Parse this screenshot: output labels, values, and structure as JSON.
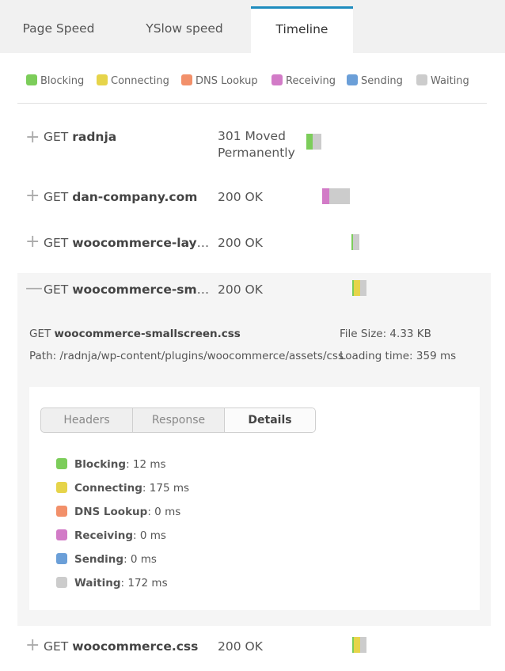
{
  "tabs": [
    {
      "label": "Page Speed"
    },
    {
      "label": "YSlow speed"
    },
    {
      "label": "Timeline"
    }
  ],
  "legend": [
    {
      "label": "Blocking",
      "color": "#7ccd5a"
    },
    {
      "label": "Connecting",
      "color": "#e6d44a"
    },
    {
      "label": "DNS Lookup",
      "color": "#f2906a"
    },
    {
      "label": "Receiving",
      "color": "#d27bc7"
    },
    {
      "label": "Sending",
      "color": "#6b9fd8"
    },
    {
      "label": "Waiting",
      "color": "#cccccc"
    }
  ],
  "requests": [
    {
      "sign": "+",
      "method": "GET",
      "name": "radnja",
      "status_line1": "301 Moved",
      "status_line2": "Permanently"
    },
    {
      "sign": "+",
      "method": "GET",
      "name": "dan-company.com",
      "status": "200 OK"
    },
    {
      "sign": "+",
      "method": "GET",
      "name": "woocommerce-layout.css",
      "status": "200 OK"
    },
    {
      "sign": "—",
      "method": "GET",
      "name": "woocommerce-smallscreen.css",
      "status": "200 OK"
    },
    {
      "sign": "+",
      "method": "GET",
      "name": "woocommerce.css",
      "status": "200 OK"
    }
  ],
  "expanded": {
    "method": "GET",
    "name": "woocommerce-smallscreen.css",
    "path": "Path: /radnja/wp-content/plugins/woocommerce/assets/css",
    "file_size": "File Size: 4.33 KB",
    "loading_time": "Loading time: 359 ms",
    "subtabs": [
      {
        "label": "Headers"
      },
      {
        "label": "Response"
      },
      {
        "label": "Details"
      }
    ],
    "details": [
      {
        "label": "Blocking",
        "value": ": 12 ms",
        "color": "#7ccd5a"
      },
      {
        "label": "Connecting",
        "value": ": 175 ms",
        "color": "#e6d44a"
      },
      {
        "label": "DNS Lookup",
        "value": ": 0 ms",
        "color": "#f2906a"
      },
      {
        "label": "Receiving",
        "value": ": 0 ms",
        "color": "#d27bc7"
      },
      {
        "label": "Sending",
        "value": ": 0 ms",
        "color": "#6b9fd8"
      },
      {
        "label": "Waiting",
        "value": ": 172 ms",
        "color": "#cccccc"
      }
    ]
  }
}
